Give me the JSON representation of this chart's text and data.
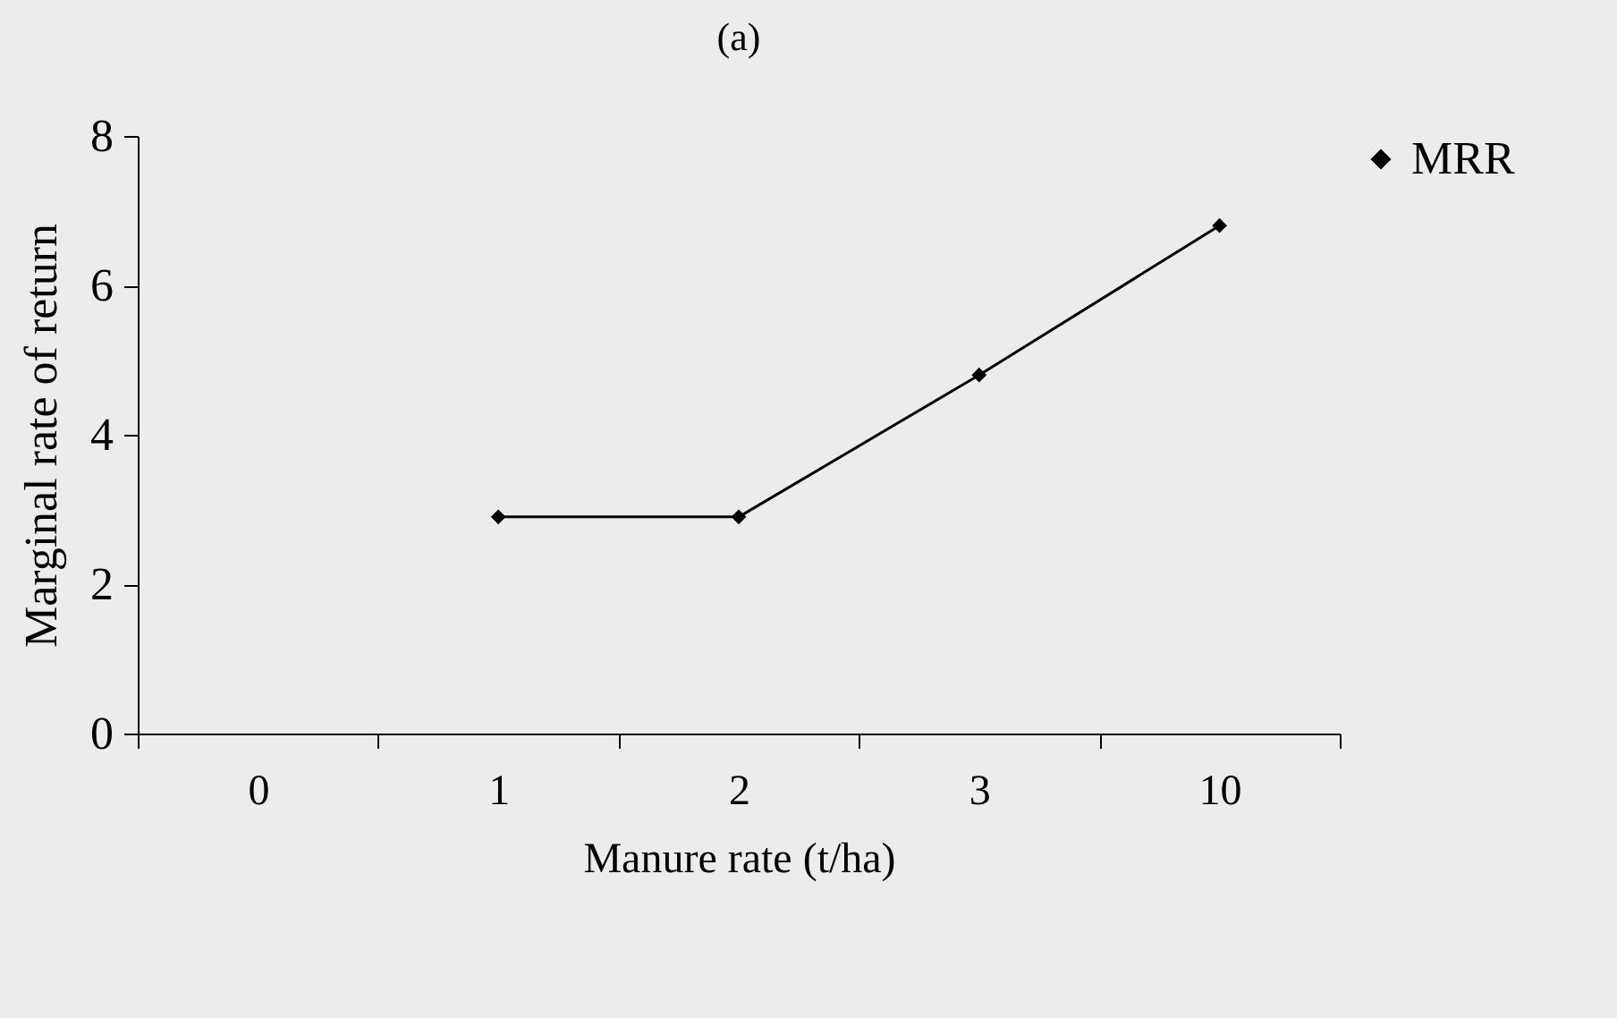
{
  "chart_data": {
    "type": "line",
    "title": "(a)",
    "xlabel": "Manure rate (t/ha)",
    "ylabel": "Marginal rate of return",
    "categories": [
      "0",
      "1",
      "2",
      "3",
      "10"
    ],
    "series": [
      {
        "name": "MRR",
        "color": "#000000",
        "values": [
          null,
          2.9,
          2.9,
          4.8,
          6.8
        ]
      }
    ],
    "ylim": [
      0,
      8
    ],
    "yticks": [
      0,
      2,
      4,
      6,
      8
    ],
    "legend": "right",
    "marker": "diamond"
  }
}
